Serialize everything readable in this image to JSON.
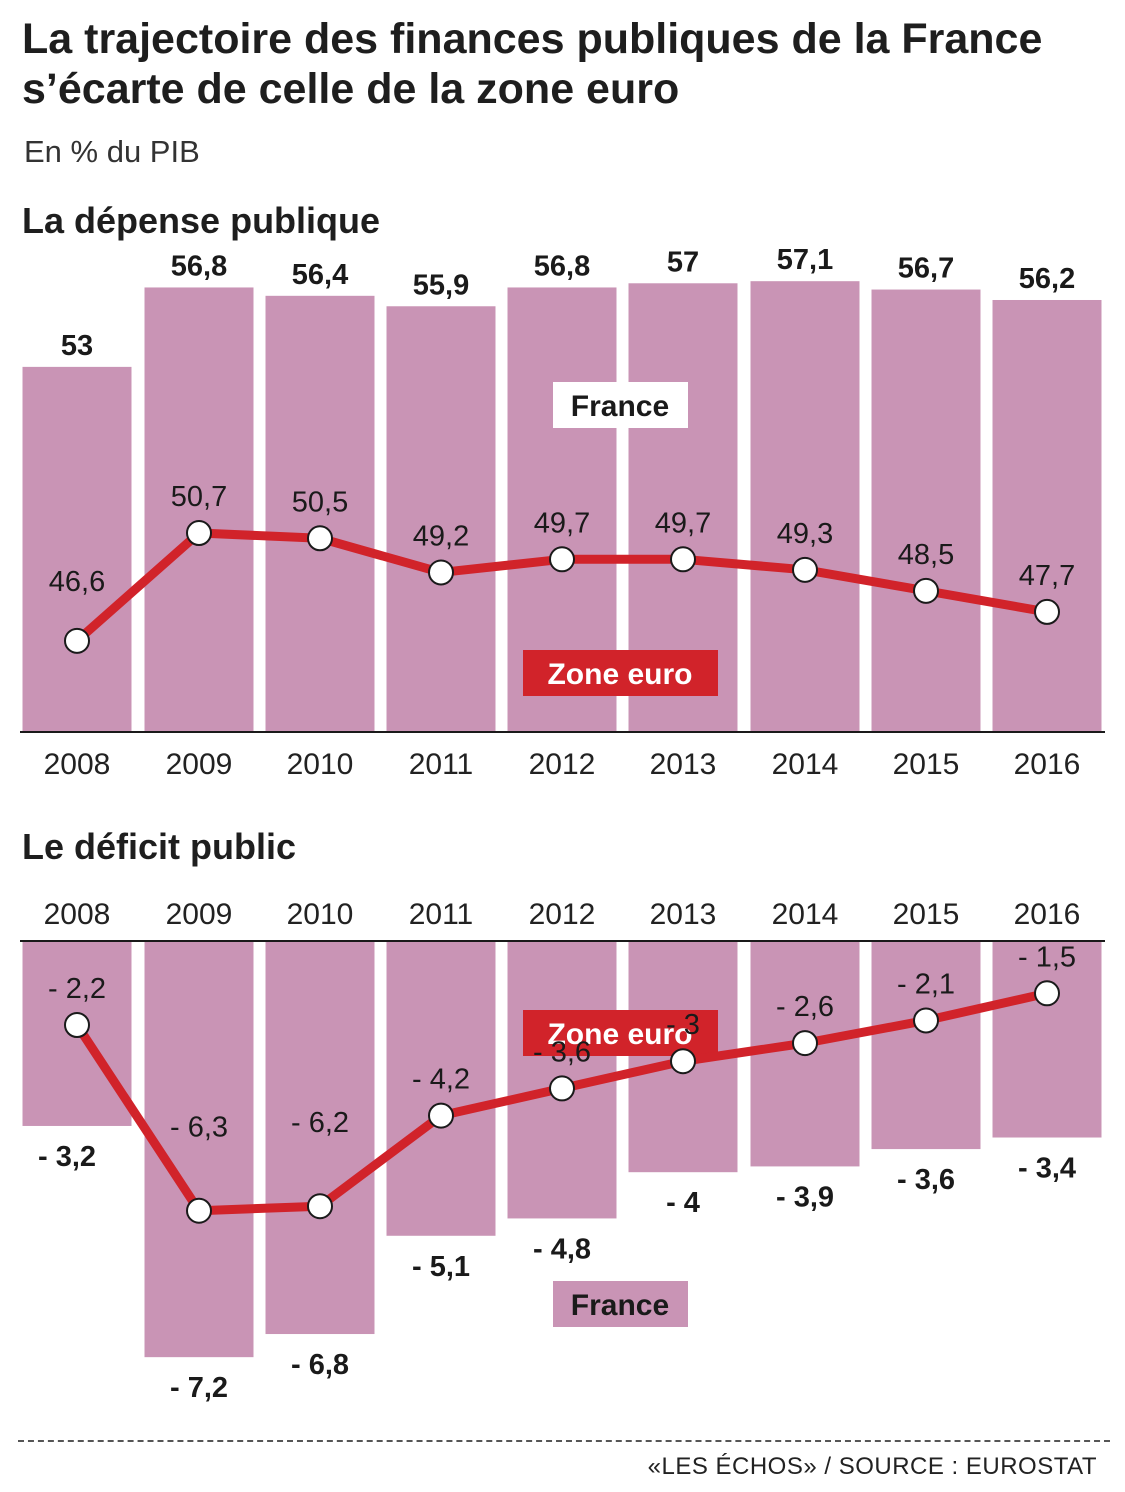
{
  "title": "La trajectoire des finances publiques de la France s’écarte de celle de la zone euro",
  "subtitle": "En % du PIB",
  "source": "«LES ÉCHOS» / SOURCE : EUROSTAT",
  "colors": {
    "france": "#c994b5",
    "zone_euro": "#d1232a",
    "text": "#1a1a1a"
  },
  "chart_data": [
    {
      "type": "bar",
      "title": "La dépense publique",
      "categories": [
        "2008",
        "2009",
        "2010",
        "2011",
        "2012",
        "2013",
        "2014",
        "2015",
        "2016"
      ],
      "series": [
        {
          "name": "France",
          "type": "bar",
          "values": [
            53,
            56.8,
            56.4,
            55.9,
            56.8,
            57,
            57.1,
            56.7,
            56.2
          ],
          "labels": [
            "53",
            "56,8",
            "56,4",
            "55,9",
            "56,8",
            "57",
            "57,1",
            "56,7",
            "56,2"
          ]
        },
        {
          "name": "Zone euro",
          "type": "line",
          "values": [
            46.6,
            50.7,
            50.5,
            49.2,
            49.7,
            49.7,
            49.3,
            48.5,
            47.7
          ],
          "labels": [
            "46,6",
            "50,7",
            "50,5",
            "49,2",
            "49,7",
            "49,7",
            "49,3",
            "48,5",
            "47,7"
          ]
        }
      ],
      "legend": {
        "france": "France",
        "zone_euro": "Zone euro"
      }
    },
    {
      "type": "bar",
      "title": "Le déficit public",
      "categories": [
        "2008",
        "2009",
        "2010",
        "2011",
        "2012",
        "2013",
        "2014",
        "2015",
        "2016"
      ],
      "series": [
        {
          "name": "France",
          "type": "bar",
          "values": [
            -3.2,
            -7.2,
            -6.8,
            -5.1,
            -4.8,
            -4,
            -3.9,
            -3.6,
            -3.4
          ],
          "labels": [
            "- 3,2",
            "- 7,2",
            "- 6,8",
            "- 5,1",
            "- 4,8",
            "- 4",
            "- 3,9",
            "- 3,6",
            "- 3,4"
          ]
        },
        {
          "name": "Zone euro",
          "type": "line",
          "values": [
            -2.2,
            -6.3,
            -6.2,
            -4.2,
            -3.6,
            -3,
            -2.6,
            -2.1,
            -1.5
          ],
          "labels": [
            "- 2,2",
            "- 6,3",
            "- 6,2",
            "- 4,2",
            "- 3,6",
            "- 3",
            "- 2,6",
            "- 2,1",
            "- 1,5"
          ]
        }
      ],
      "legend": {
        "france": "France",
        "zone_euro": "Zone euro"
      }
    }
  ]
}
